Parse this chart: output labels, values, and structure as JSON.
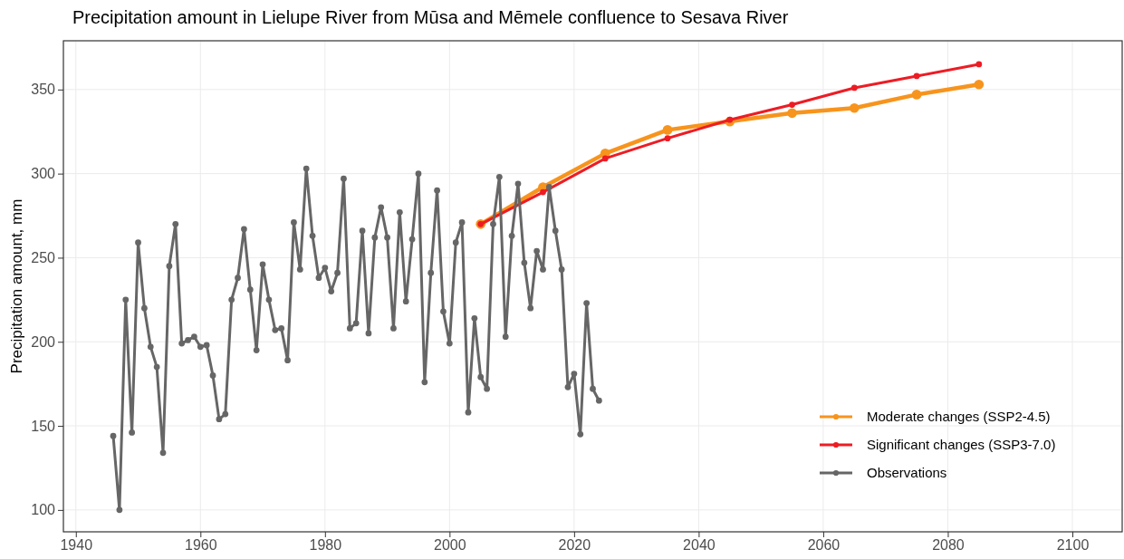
{
  "chart_data": {
    "type": "line",
    "title": "Precipitation amount in Lielupe River from Mūsa and Mēmele confluence to Sesava River",
    "ylabel": "Precipitation amount, mm",
    "xlim": [
      1938,
      2108
    ],
    "xticks": [
      1940,
      1960,
      1980,
      2000,
      2020,
      2040,
      2060,
      2080,
      2100
    ],
    "ylim": [
      87,
      379
    ],
    "yticks": [
      100,
      150,
      200,
      250,
      300,
      350
    ],
    "grid": true,
    "legend": "bottom right",
    "marker": "circle",
    "line_style": "solid",
    "series": [
      {
        "name": "Moderate changes (SSP2-4.5)",
        "color": "#f7941d",
        "x": [
          2005,
          2015,
          2025,
          2035,
          2045,
          2055,
          2065,
          2075,
          2085
        ],
        "values": [
          270,
          292,
          312,
          326,
          331,
          336,
          339,
          347,
          353
        ]
      },
      {
        "name": "Significant changes (SSP3-7.0)",
        "color": "#ed1c24",
        "x": [
          2005,
          2015,
          2025,
          2035,
          2045,
          2055,
          2065,
          2075,
          2085
        ],
        "values": [
          270,
          289,
          309,
          321,
          332,
          341,
          351,
          358,
          365
        ]
      },
      {
        "name": "Observations",
        "color": "#666666",
        "x": [
          1946,
          1947,
          1948,
          1949,
          1950,
          1951,
          1952,
          1953,
          1954,
          1955,
          1956,
          1957,
          1958,
          1959,
          1960,
          1961,
          1962,
          1963,
          1964,
          1965,
          1966,
          1967,
          1968,
          1969,
          1970,
          1971,
          1972,
          1973,
          1974,
          1975,
          1976,
          1977,
          1978,
          1979,
          1980,
          1981,
          1982,
          1983,
          1984,
          1985,
          1986,
          1987,
          1988,
          1989,
          1990,
          1991,
          1992,
          1993,
          1994,
          1995,
          1996,
          1997,
          1998,
          1999,
          2000,
          2001,
          2002,
          2003,
          2004,
          2005,
          2006,
          2007,
          2008,
          2009,
          2010,
          2011,
          2012,
          2013,
          2014,
          2015,
          2016,
          2017,
          2018,
          2019,
          2020,
          2021,
          2022,
          2023,
          2024
        ],
        "values": [
          144,
          100,
          225,
          146,
          259,
          220,
          197,
          185,
          134,
          245,
          270,
          199,
          201,
          203,
          197,
          198,
          180,
          154,
          157,
          225,
          238,
          267,
          231,
          195,
          246,
          225,
          207,
          208,
          189,
          271,
          243,
          303,
          263,
          238,
          244,
          230,
          241,
          297,
          208,
          211,
          266,
          205,
          262,
          280,
          262,
          208,
          277,
          224,
          261,
          300,
          176,
          241,
          290,
          218,
          199,
          259,
          271,
          158,
          214,
          179,
          172,
          270,
          298,
          203,
          263,
          294,
          247,
          220,
          254,
          243,
          292,
          266,
          243,
          173,
          181,
          145,
          223,
          172,
          165
        ]
      }
    ]
  }
}
